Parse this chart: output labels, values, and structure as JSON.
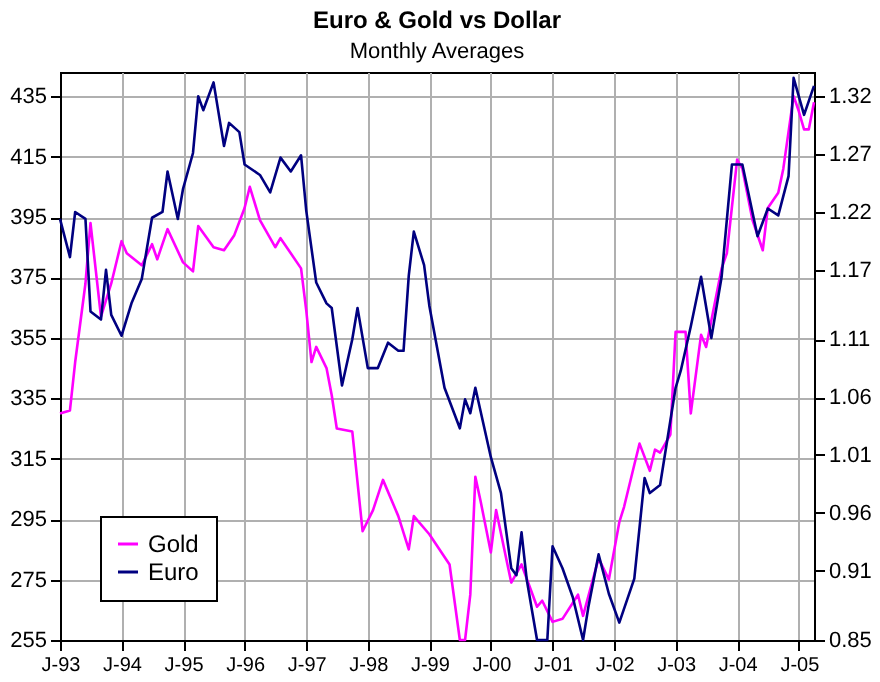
{
  "chart_data": {
    "type": "line",
    "title": "Euro & Gold vs Dollar",
    "subtitle": "Monthly Averages",
    "xlim": [
      "1993-01",
      "2005-04"
    ],
    "xticks": [
      {
        "value": "1993-01",
        "label": "J-93"
      },
      {
        "value": "1994-01",
        "label": "J-94"
      },
      {
        "value": "1995-01",
        "label": "J-95"
      },
      {
        "value": "1996-01",
        "label": "J-96"
      },
      {
        "value": "1997-01",
        "label": "J-97"
      },
      {
        "value": "1998-01",
        "label": "J-98"
      },
      {
        "value": "1999-01",
        "label": "J-99"
      },
      {
        "value": "2000-01",
        "label": "J-00"
      },
      {
        "value": "2001-01",
        "label": "J-01"
      },
      {
        "value": "2002-01",
        "label": "J-02"
      },
      {
        "value": "2003-01",
        "label": "J-03"
      },
      {
        "value": "2004-01",
        "label": "J-04"
      },
      {
        "value": "2005-01",
        "label": "J-05"
      }
    ],
    "ylim": [
      255,
      443
    ],
    "yticks": [
      255,
      275,
      295,
      315,
      335,
      355,
      375,
      395,
      415,
      435
    ],
    "y2lim": [
      0.85,
      1.341
    ],
    "y2ticks": [
      0.85,
      0.91,
      0.96,
      1.01,
      1.06,
      1.11,
      1.17,
      1.22,
      1.27,
      1.32
    ],
    "grid": true,
    "legend": "bottom left",
    "line_style": "solid",
    "marker": "none",
    "series": [
      {
        "name": "Gold",
        "color": "#ff00ff",
        "x": [
          "1993-01",
          "1993-03",
          "1993-04",
          "1993-06",
          "1993-07",
          "1993-09",
          "1993-11",
          "1994-01",
          "1994-02",
          "1994-05",
          "1994-07",
          "1994-08",
          "1994-10",
          "1995-01",
          "1995-03",
          "1995-04",
          "1995-07",
          "1995-09",
          "1995-11",
          "1996-01",
          "1996-02",
          "1996-04",
          "1996-07",
          "1996-08",
          "1996-10",
          "1996-12",
          "1997-01",
          "1997-02",
          "1997-03",
          "1997-05",
          "1997-06",
          "1997-07",
          "1997-10",
          "1997-12",
          "1998-02",
          "1998-04",
          "1998-07",
          "1998-09",
          "1998-10",
          "1999-01",
          "1999-05",
          "1999-07",
          "1999-08",
          "1999-09",
          "1999-10",
          "1999-11",
          "2000-01",
          "2000-02",
          "2000-04",
          "2000-05",
          "2000-07",
          "2000-10",
          "2000-11",
          "2001-01",
          "2001-03",
          "2001-06",
          "2001-07",
          "2001-10",
          "2001-12",
          "2002-02",
          "2002-03",
          "2002-05",
          "2002-06",
          "2002-08",
          "2002-09",
          "2002-10",
          "2002-12",
          "2003-01",
          "2003-03",
          "2003-04",
          "2003-06",
          "2003-07",
          "2003-10",
          "2003-11",
          "2004-01",
          "2004-02",
          "2004-04",
          "2004-06",
          "2004-07",
          "2004-09",
          "2004-10",
          "2004-12",
          "2005-01",
          "2005-02",
          "2005-03",
          "2005-04"
        ],
        "values": [
          330,
          331,
          347,
          373,
          393,
          362,
          373,
          387,
          383,
          379,
          386,
          381,
          391,
          380,
          377,
          392,
          385,
          384,
          389,
          398,
          405,
          394,
          385,
          388,
          383,
          378,
          364,
          347,
          352,
          345,
          336,
          325,
          324,
          291,
          298,
          308,
          296,
          285,
          296,
          290,
          280,
          255,
          255,
          270,
          309,
          301,
          284,
          298,
          282,
          274,
          280,
          266,
          268,
          261,
          262,
          270,
          263,
          282,
          275,
          294,
          299,
          313,
          320,
          311,
          318,
          317,
          323,
          357,
          357,
          330,
          356,
          352,
          378,
          383,
          414,
          411,
          394,
          384,
          398,
          403,
          411,
          435,
          430,
          424,
          424,
          433
        ]
      },
      {
        "name": "Euro",
        "color": "#000080",
        "axis": "y2",
        "x": [
          "1993-01",
          "1993-03",
          "1993-04",
          "1993-06",
          "1993-07",
          "1993-09",
          "1993-10",
          "1993-11",
          "1994-01",
          "1994-03",
          "1994-05",
          "1994-07",
          "1994-09",
          "1994-10",
          "1994-12",
          "1995-01",
          "1995-03",
          "1995-04",
          "1995-05",
          "1995-07",
          "1995-09",
          "1995-10",
          "1995-12",
          "1996-01",
          "1996-04",
          "1996-06",
          "1996-08",
          "1996-10",
          "1996-12",
          "1997-01",
          "1997-03",
          "1997-05",
          "1997-06",
          "1997-08",
          "1997-10",
          "1997-11",
          "1998-01",
          "1998-03",
          "1998-05",
          "1998-07",
          "1998-08",
          "1998-09",
          "1998-10",
          "1998-12",
          "1999-01",
          "1999-04",
          "1999-07",
          "1999-08",
          "1999-09",
          "1999-10",
          "2000-01",
          "2000-03",
          "2000-05",
          "2000-06",
          "2000-07",
          "2000-08",
          "2000-10",
          "2000-12",
          "2001-01",
          "2001-03",
          "2001-05",
          "2001-07",
          "2001-08",
          "2001-10",
          "2001-12",
          "2002-02",
          "2002-05",
          "2002-07",
          "2002-08",
          "2002-10",
          "2003-01",
          "2003-02",
          "2003-04",
          "2003-06",
          "2003-08",
          "2003-10",
          "2003-12",
          "2004-02",
          "2004-05",
          "2004-07",
          "2004-09",
          "2004-11",
          "2004-12",
          "2005-02",
          "2005-04"
        ],
        "values": [
          1.214,
          1.181,
          1.22,
          1.214,
          1.134,
          1.127,
          1.17,
          1.131,
          1.113,
          1.141,
          1.162,
          1.215,
          1.22,
          1.255,
          1.214,
          1.24,
          1.271,
          1.32,
          1.308,
          1.332,
          1.277,
          1.297,
          1.289,
          1.261,
          1.252,
          1.237,
          1.267,
          1.255,
          1.269,
          1.221,
          1.159,
          1.141,
          1.137,
          1.07,
          1.11,
          1.137,
          1.085,
          1.085,
          1.107,
          1.1,
          1.1,
          1.165,
          1.203,
          1.174,
          1.139,
          1.068,
          1.033,
          1.058,
          1.046,
          1.068,
          1.008,
          0.977,
          0.912,
          0.906,
          0.943,
          0.902,
          0.85,
          0.85,
          0.931,
          0.912,
          0.887,
          0.85,
          0.878,
          0.924,
          0.89,
          0.865,
          0.903,
          0.99,
          0.977,
          0.984,
          1.068,
          1.083,
          1.121,
          1.164,
          1.111,
          1.164,
          1.261,
          1.261,
          1.199,
          1.223,
          1.217,
          1.251,
          1.336,
          1.304,
          1.329
        ]
      }
    ]
  }
}
